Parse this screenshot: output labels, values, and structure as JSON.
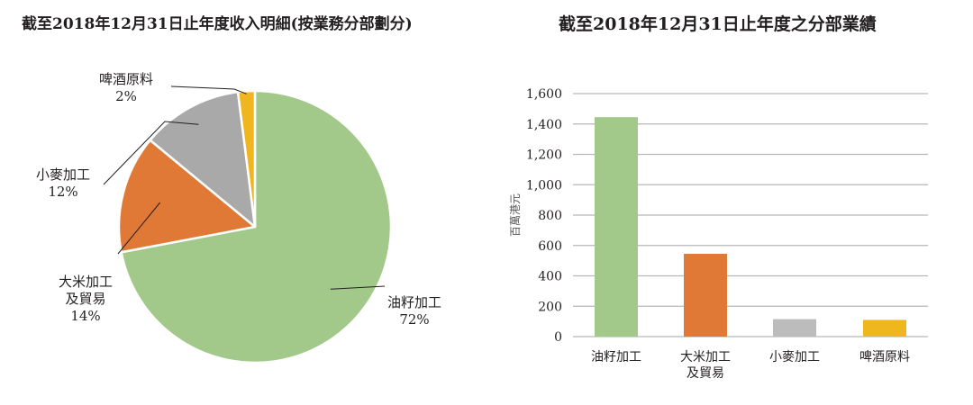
{
  "charts": {
    "pie_title": "截至2018年12月31日止年度收入明細(按業務分部劃分)",
    "bar_title": "截至2018年12月31日止年度之分部業績"
  },
  "chart_data": [
    {
      "type": "pie",
      "title": "截至2018年12月31日止年度收入明細(按業務分部劃分)",
      "categories": [
        "油籽加工",
        "大米加工及貿易",
        "小麥加工",
        "啤酒原料"
      ],
      "values": [
        72,
        14,
        12,
        2
      ],
      "value_labels": [
        "72%",
        "14%",
        "12%",
        "2%"
      ],
      "colors": [
        "#a3c98a",
        "#e07836",
        "#a9a9a9",
        "#efb61f"
      ]
    },
    {
      "type": "bar",
      "title": "截至2018年12月31日止年度之分部業績",
      "categories": [
        "油籽加工",
        "大米加工及貿易",
        "小麥加工",
        "啤酒原料"
      ],
      "category_lines": [
        [
          "油籽加工"
        ],
        [
          "大米加工",
          "及貿易"
        ],
        [
          "小麥加工"
        ],
        [
          "啤酒原料"
        ]
      ],
      "values": [
        1445,
        545,
        115,
        110
      ],
      "ylabel": "百萬港元",
      "ylim": [
        0,
        1600
      ],
      "yticks": [
        0,
        200,
        400,
        600,
        800,
        1000,
        1200,
        1400,
        1600
      ],
      "ytick_labels": [
        "0",
        "200",
        "400",
        "600",
        "800",
        "1,000",
        "1,200",
        "1,400",
        "1,600"
      ],
      "grid": true,
      "colors": [
        "#a3c98a",
        "#e07836",
        "#bcbcbc",
        "#efb61f"
      ]
    }
  ]
}
